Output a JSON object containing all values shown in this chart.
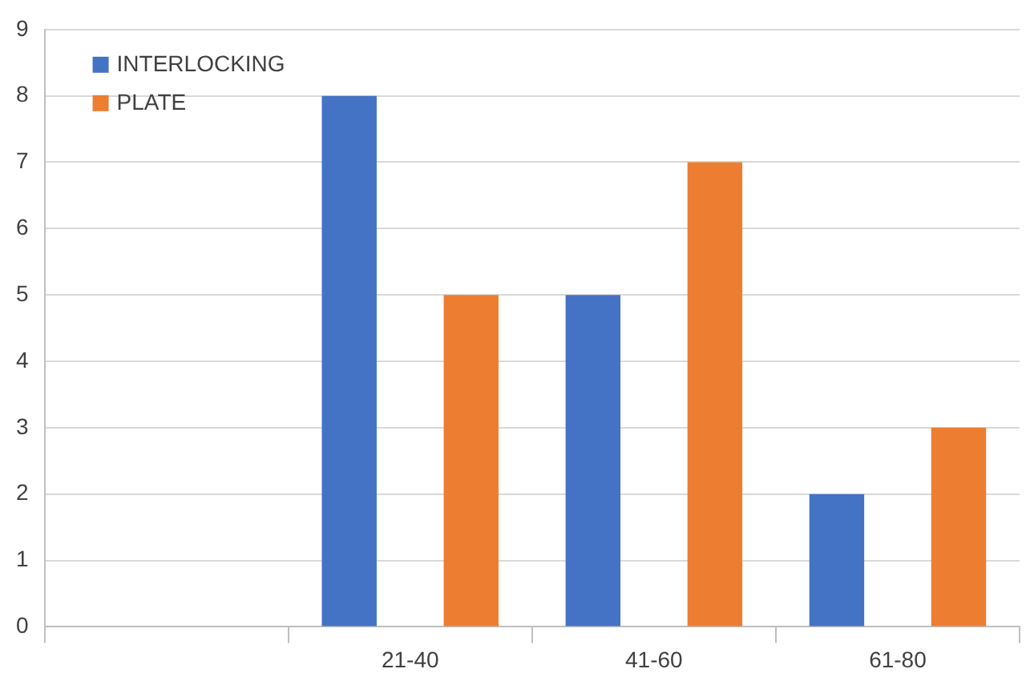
{
  "chart_data": {
    "type": "bar",
    "categories": [
      null,
      "21-40",
      "41-60",
      "61-80"
    ],
    "series": [
      {
        "name": "INTERLOCKING",
        "color": "#4472c4",
        "values": [
          null,
          8,
          5,
          2
        ]
      },
      {
        "name": "PLATE",
        "color": "#ed7d31",
        "values": [
          null,
          5,
          7,
          3
        ]
      }
    ],
    "ylim": [
      0,
      9
    ],
    "yticks": [
      0,
      1,
      2,
      3,
      4,
      5,
      6,
      7,
      8,
      9
    ],
    "grid": "y",
    "legend": "top left"
  }
}
